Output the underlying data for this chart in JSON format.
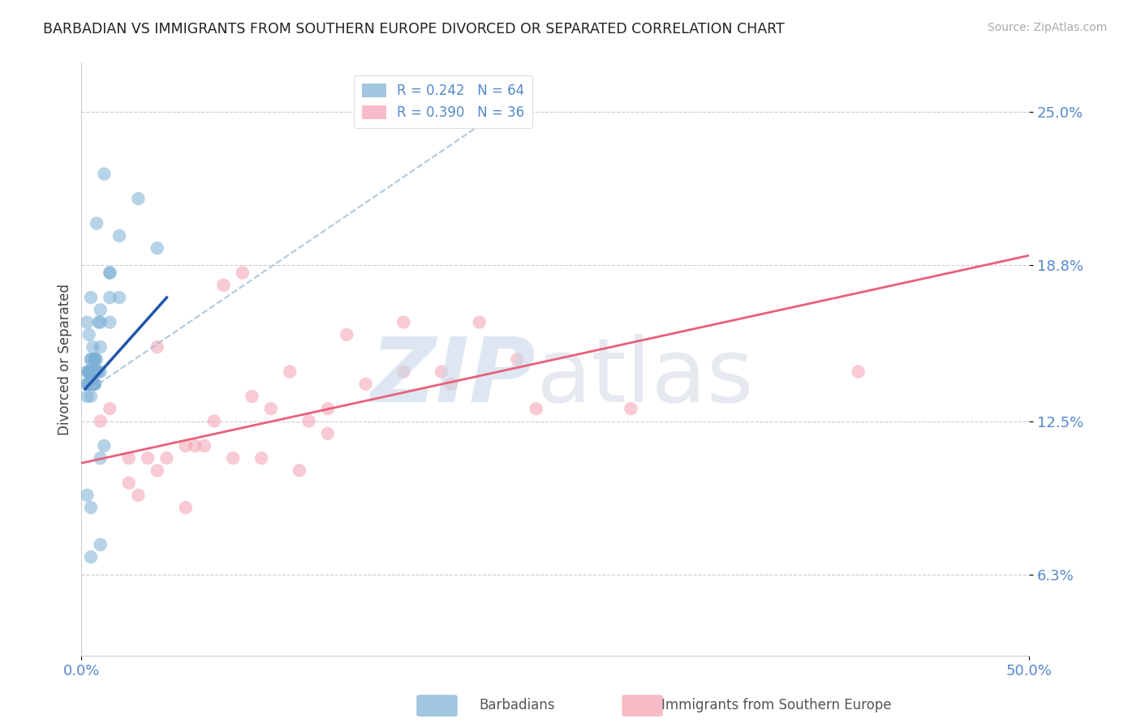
{
  "title": "BARBADIAN VS IMMIGRANTS FROM SOUTHERN EUROPE DIVORCED OR SEPARATED CORRELATION CHART",
  "source": "Source: ZipAtlas.com",
  "ylabel": "Divorced or Separated",
  "xlim": [
    0.0,
    50.0
  ],
  "ylim": [
    3.0,
    27.0
  ],
  "yticks": [
    6.3,
    12.5,
    18.8,
    25.0
  ],
  "xticks": [
    0.0,
    50.0
  ],
  "ytick_labels": [
    "6.3%",
    "12.5%",
    "18.8%",
    "25.0%"
  ],
  "xtick_labels": [
    "0.0%",
    "50.0%"
  ],
  "blue_color": "#7BAFD4",
  "pink_color": "#F4A0B0",
  "blue_line_color": "#2255AA",
  "pink_line_color": "#E8607A",
  "dashed_color": "#9BBBD4",
  "legend_blue_label": "R = 0.242   N = 64",
  "legend_pink_label": "R = 0.390   N = 36",
  "tick_color": "#5588CC",
  "grid_color": "#CCCCCC",
  "blue_scatter_x": [
    0.8,
    1.2,
    3.0,
    2.0,
    0.5,
    0.3,
    0.4,
    0.6,
    0.8,
    1.0,
    0.5,
    0.4,
    0.7,
    1.5,
    0.6,
    0.3,
    0.5,
    0.7,
    0.4,
    0.6,
    0.5,
    0.3,
    1.0,
    0.7,
    0.4,
    0.6,
    0.7,
    0.5,
    1.5,
    0.9,
    0.3,
    0.5,
    0.6,
    0.7,
    0.4,
    0.6,
    0.5,
    0.7,
    0.4,
    1.0,
    0.7,
    0.6,
    0.5,
    0.3,
    1.0,
    1.2,
    0.5,
    2.0,
    0.8,
    1.5,
    0.5,
    0.3,
    0.5,
    0.7,
    1.0,
    1.5,
    0.9,
    0.6,
    4.0,
    0.7,
    0.5,
    1.0,
    0.7,
    0.5
  ],
  "blue_scatter_y": [
    20.5,
    22.5,
    21.5,
    20.0,
    17.5,
    16.5,
    16.0,
    15.5,
    15.0,
    15.5,
    15.0,
    14.5,
    14.5,
    18.5,
    14.5,
    14.0,
    14.0,
    14.5,
    14.5,
    14.0,
    14.5,
    14.0,
    16.5,
    15.0,
    14.5,
    14.5,
    14.0,
    14.5,
    18.5,
    16.5,
    13.5,
    13.5,
    14.5,
    14.5,
    14.0,
    14.5,
    14.0,
    15.0,
    14.5,
    17.0,
    15.0,
    14.5,
    14.0,
    14.5,
    11.0,
    11.5,
    14.0,
    17.5,
    14.5,
    16.5,
    15.0,
    9.5,
    9.0,
    14.0,
    14.5,
    17.5,
    14.5,
    14.0,
    19.5,
    14.0,
    7.0,
    7.5,
    14.5,
    14.0
  ],
  "pink_scatter_x": [
    7.5,
    8.5,
    1.0,
    1.5,
    2.5,
    4.0,
    3.0,
    5.5,
    9.0,
    10.0,
    11.0,
    17.0,
    21.0,
    23.0,
    13.0,
    19.0,
    24.0,
    29.0,
    6.0,
    7.0,
    4.0,
    3.5,
    5.5,
    8.0,
    12.0,
    15.0,
    13.0,
    2.5,
    4.5,
    6.5,
    9.5,
    11.5,
    19.5,
    41.0,
    17.0,
    14.0
  ],
  "pink_scatter_y": [
    18.0,
    18.5,
    12.5,
    13.0,
    11.0,
    15.5,
    9.5,
    9.0,
    13.5,
    13.0,
    14.5,
    14.5,
    16.5,
    15.0,
    12.0,
    14.5,
    13.0,
    13.0,
    11.5,
    12.5,
    10.5,
    11.0,
    11.5,
    11.0,
    12.5,
    14.0,
    13.0,
    10.0,
    11.0,
    11.5,
    11.0,
    10.5,
    14.0,
    14.5,
    16.5,
    16.0
  ],
  "blue_reg_x_start": 0.2,
  "blue_reg_x_end": 4.5,
  "blue_reg_y_start": 13.8,
  "blue_reg_y_end": 17.5,
  "pink_reg_x_start": 0.0,
  "pink_reg_x_end": 50.0,
  "pink_reg_y_start": 10.8,
  "pink_reg_y_end": 19.2,
  "dashed_x_start": 0.5,
  "dashed_x_end": 23.0,
  "dashed_y_start": 13.8,
  "dashed_y_end": 25.5
}
